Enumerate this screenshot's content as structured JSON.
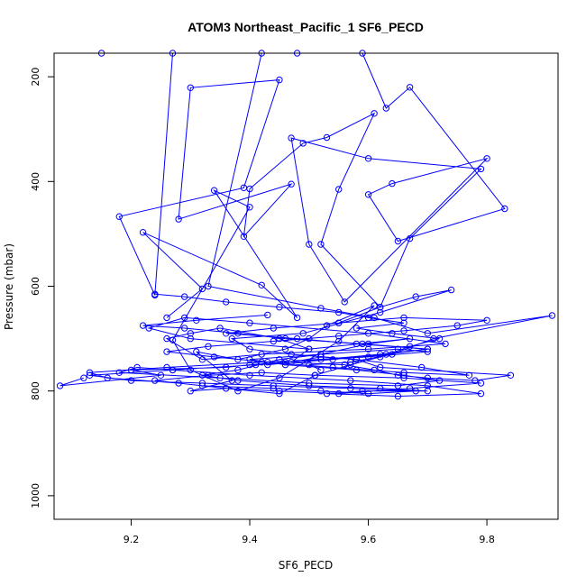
{
  "chart_data": {
    "type": "line",
    "title": "ATOM3 Northeast_Pacific_1 SF6_PECD",
    "xlabel": "SF6_PECD",
    "ylabel": "Pressure (mbar)",
    "xlim": [
      9.07,
      9.92
    ],
    "ylim": [
      1045,
      155
    ],
    "y_inverted": true,
    "x_ticks": [
      9.2,
      9.4,
      9.6,
      9.8
    ],
    "y_ticks": [
      200,
      400,
      600,
      800,
      1000
    ],
    "x_tick_labels": [
      "9.2",
      "9.4",
      "9.6",
      "9.8"
    ],
    "y_tick_labels": [
      "200",
      "400",
      "600",
      "800",
      "1000"
    ],
    "grid": false,
    "series_color": "#0000ff",
    "marker": "open-circle",
    "series": [
      {
        "x": [
          9.12,
          9.08,
          9.25,
          9.2,
          9.36,
          9.4,
          9.46,
          9.56,
          9.61,
          9.65,
          9.7,
          9.78,
          9.84,
          9.62,
          9.58,
          9.52,
          9.47,
          9.5,
          9.45,
          9.35,
          9.3,
          9.26,
          9.32,
          9.42,
          9.6,
          9.73,
          9.6,
          9.4,
          9.29,
          9.23,
          9.3,
          9.5,
          9.67,
          9.6,
          9.52,
          9.45,
          9.38,
          9.32,
          9.38,
          9.5,
          9.62,
          9.7,
          9.59,
          9.53,
          9.65,
          9.79,
          9.7,
          9.57,
          9.4,
          9.27,
          9.21,
          9.18,
          9.35,
          9.5,
          9.65,
          9.72,
          9.66,
          9.58,
          9.46,
          9.4,
          9.52,
          9.65,
          9.7,
          9.6,
          9.42,
          9.26,
          9.13,
          9.16,
          9.28,
          9.36,
          9.45,
          9.55,
          9.67,
          9.79,
          9.66,
          9.51,
          9.42,
          9.33,
          9.24,
          9.32,
          9.44,
          9.52,
          9.6,
          9.68,
          9.57,
          9.44,
          9.32,
          9.2,
          9.13,
          9.27,
          9.41,
          9.54,
          9.63,
          9.7,
          9.59,
          9.46,
          9.38,
          9.29,
          9.22,
          9.31,
          9.43
        ],
        "y": [
          775,
          790,
          770,
          760,
          755,
          750,
          745,
          750,
          760,
          770,
          775,
          780,
          770,
          755,
          740,
          735,
          745,
          720,
          700,
          680,
          690,
          700,
          740,
          730,
          720,
          710,
          690,
          670,
          660,
          680,
          700,
          720,
          700,
          710,
          730,
          740,
          760,
          770,
          780,
          790,
          795,
          800,
          800,
          805,
          810,
          805,
          790,
          780,
          770,
          760,
          755,
          765,
          775,
          785,
          790,
          780,
          770,
          760,
          750,
          740,
          730,
          720,
          725,
          735,
          745,
          755,
          765,
          775,
          785,
          795,
          800,
          805,
          795,
          785,
          775,
          770,
          765,
          770,
          780,
          790,
          795,
          800,
          805,
          800,
          795,
          790,
          785,
          780,
          770,
          760,
          750,
          740,
          730,
          720,
          710,
          700,
          690,
          680,
          675,
          665,
          655
        ]
      },
      {
        "x": [
          9.26,
          9.32,
          9.22,
          9.42,
          9.48,
          9.34,
          9.4,
          9.27,
          9.3,
          9.38,
          9.45,
          9.55,
          9.61,
          9.53,
          9.5,
          9.46,
          9.38,
          9.31,
          9.37,
          9.3,
          9.36,
          9.45,
          9.51,
          9.57,
          9.62,
          9.67,
          9.72,
          9.64,
          9.58,
          9.66,
          9.6,
          9.55,
          9.45,
          9.36,
          9.29,
          9.24
        ],
        "y": [
          660,
          605,
          497,
          598,
          660,
          417,
          449,
          703,
          760,
          800,
          775,
          705,
          637,
          675,
          700,
          720,
          740,
          725,
          780,
          800,
          795,
          805,
          770,
          750,
          735,
          715,
          700,
          690,
          680,
          670,
          660,
          650,
          640,
          630,
          620,
          615
        ]
      },
      {
        "x": [
          9.15,
          9.27,
          9.24,
          9.18,
          9.39,
          9.45,
          9.3,
          9.28,
          9.47,
          9.39,
          9.4,
          9.49,
          9.53,
          9.61,
          9.55,
          9.52,
          9.62,
          9.67,
          9.79,
          9.6,
          9.47,
          9.5,
          9.56,
          9.8,
          9.64,
          9.6,
          9.65,
          9.83,
          9.67,
          9.63,
          9.59,
          9.48,
          9.42,
          9.33,
          9.52,
          9.61,
          9.7,
          9.91,
          9.71,
          9.64,
          9.57,
          9.5,
          9.52
        ],
        "y": [
          155,
          155,
          617,
          467,
          412,
          206,
          221,
          472,
          405,
          505,
          414,
          327,
          316,
          270,
          415,
          520,
          640,
          509,
          376,
          356,
          317,
          520,
          630,
          356,
          404,
          425,
          514,
          452,
          220,
          260,
          155,
          155,
          155,
          600,
          642,
          660,
          690,
          656,
          700,
          730,
          745,
          750,
          760
        ]
      },
      {
        "x": [
          9.55,
          9.62,
          9.68,
          9.74,
          9.62,
          9.49,
          9.37,
          9.4,
          9.47,
          9.58,
          9.69,
          9.77,
          9.66,
          9.54,
          9.43,
          9.34,
          9.26,
          9.33,
          9.44,
          9.55,
          9.66,
          9.75,
          9.8,
          9.66,
          9.55,
          9.44,
          9.36,
          9.48,
          9.58,
          9.7,
          9.62,
          9.52,
          9.43
        ],
        "y": [
          670,
          640,
          620,
          607,
          650,
          690,
          700,
          720,
          730,
          740,
          755,
          770,
          765,
          755,
          745,
          735,
          725,
          715,
          705,
          695,
          685,
          675,
          665,
          660,
          670,
          680,
          690,
          700,
          710,
          720,
          730,
          740,
          750
        ]
      }
    ]
  }
}
